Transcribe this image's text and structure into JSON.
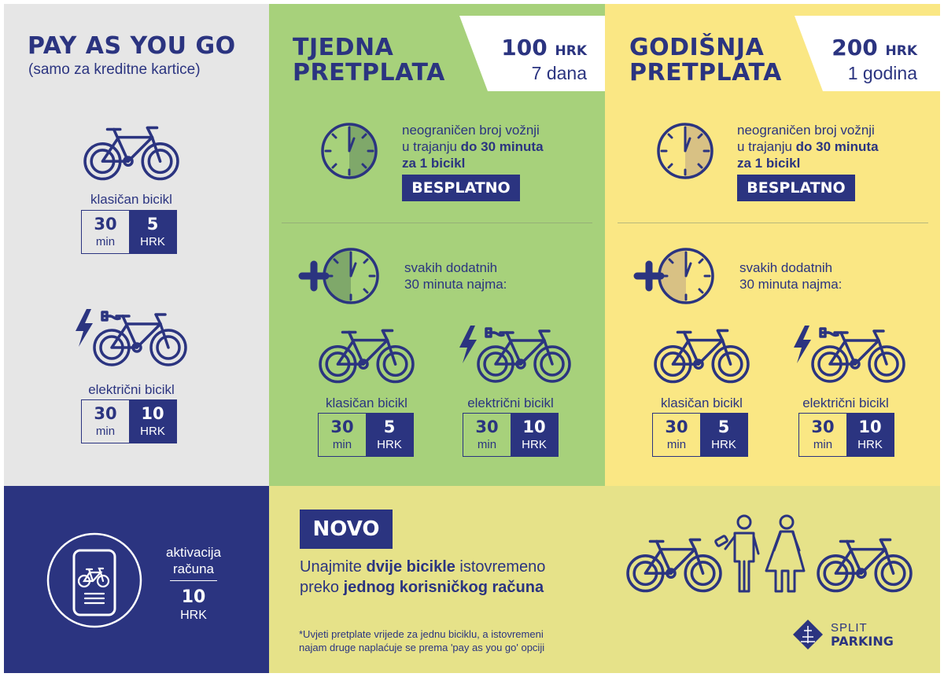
{
  "colors": {
    "navy": "#2b3480",
    "grey": "#e6e6e6",
    "green": "#a7d17b",
    "yellow": "#fae784",
    "lime": "#e6e289"
  },
  "payg": {
    "title": "PAY AS YOU GO",
    "subtitle": "(samo za kreditne kartice)",
    "classic": {
      "label": "klasičan bicikl",
      "time": "30",
      "time_unit": "min",
      "price": "5",
      "currency": "HRK"
    },
    "electric": {
      "label": "električni bicikl",
      "time": "30",
      "time_unit": "min",
      "price": "10",
      "currency": "HRK"
    }
  },
  "weekly": {
    "title_line1": "TJEDNA",
    "title_line2": "PRETPLATA",
    "price": "100",
    "currency": "HRK",
    "duration": "7 dana",
    "desc_line1": "neograničen broj vožnji",
    "desc_line2_plain": "u trajanju ",
    "desc_line2_bold": "do 30 minuta",
    "desc_line3_bold": "za 1 bicikl",
    "free_badge": "BESPLATNO",
    "extra_line1": "svakih dodatnih",
    "extra_line2": "30 minuta najma:",
    "classic": {
      "label": "klasičan bicikl",
      "time": "30",
      "time_unit": "min",
      "price": "5",
      "currency": "HRK"
    },
    "electric": {
      "label": "električni bicikl",
      "time": "30",
      "time_unit": "min",
      "price": "10",
      "currency": "HRK"
    }
  },
  "yearly": {
    "title_line1": "GODIŠNJA",
    "title_line2": "PRETPLATA",
    "price": "200",
    "currency": "HRK",
    "duration": "1 godina",
    "desc_line1": "neograničen broj vožnji",
    "desc_line2_plain": "u trajanju ",
    "desc_line2_bold": "do 30 minuta",
    "desc_line3_bold": "za 1 bicikl",
    "free_badge": "BESPLATNO",
    "extra_line1": "svakih dodatnih",
    "extra_line2": "30 minuta najma:",
    "classic": {
      "label": "klasičan bicikl",
      "time": "30",
      "time_unit": "min",
      "price": "5",
      "currency": "HRK"
    },
    "electric": {
      "label": "električni bicikl",
      "time": "30",
      "time_unit": "min",
      "price": "10",
      "currency": "HRK"
    }
  },
  "activation": {
    "label_line1": "aktivacija",
    "label_line2": "računa",
    "price": "10",
    "currency": "HRK"
  },
  "novo": {
    "badge": "NOVO",
    "line1_plain_a": "Unajmite ",
    "line1_bold": "dvije bicikle",
    "line1_plain_b": " istovremeno",
    "line2_plain": "preko ",
    "line2_bold": "jednog korisničkog računa",
    "footnote_line1": "*Uvjeti pretplate vrijede za jednu biciklu, a istovremeni",
    "footnote_line2": "najam druge naplaćuje se prema 'pay as you go' opciji"
  },
  "logo": {
    "line1": "SPLIT",
    "line2": "PARKING"
  },
  "icons": [
    "bicycle-icon",
    "electric-bicycle-icon",
    "clock-icon",
    "plus-clock-icon",
    "phone-bicycle-icon",
    "people-icon",
    "logo-icon"
  ]
}
